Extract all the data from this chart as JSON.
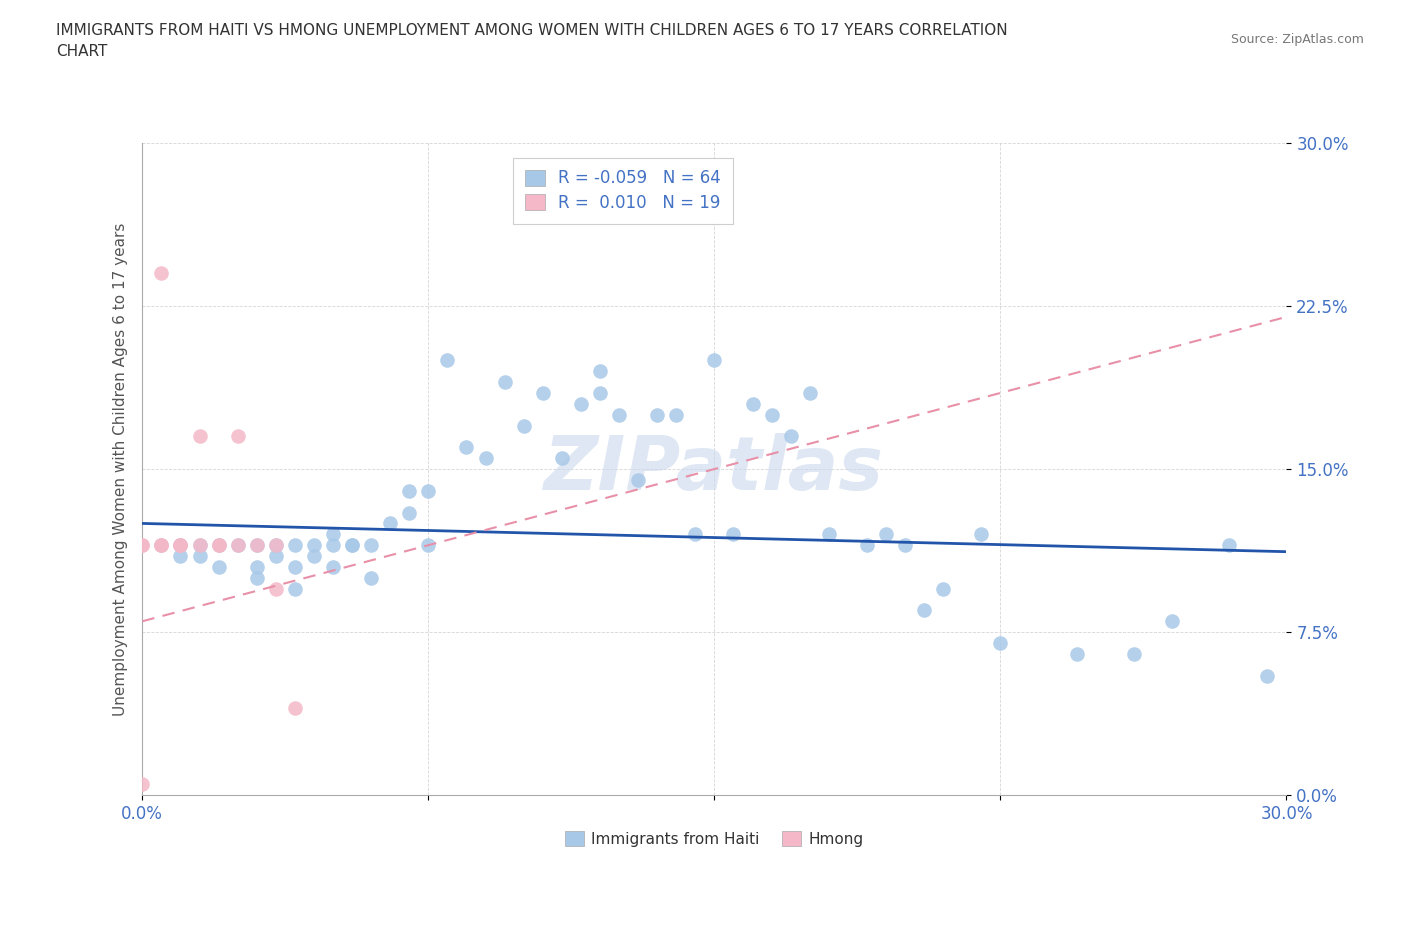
{
  "title": "IMMIGRANTS FROM HAITI VS HMONG UNEMPLOYMENT AMONG WOMEN WITH CHILDREN AGES 6 TO 17 YEARS CORRELATION\nCHART",
  "source": "Source: ZipAtlas.com",
  "xlabel_bottom": "Immigrants from Haiti",
  "xlabel_bottom2": "Hmong",
  "ylabel": "Unemployment Among Women with Children Ages 6 to 17 years",
  "xlim": [
    0.0,
    0.3
  ],
  "ylim": [
    0.0,
    0.3
  ],
  "haiti_color": "#a8c8e8",
  "hmong_color": "#f4b8c8",
  "haiti_line_color": "#2255aa",
  "hmong_line_color": "#e890a8",
  "watermark_color": "#c8d8ec",
  "r_haiti": -0.059,
  "n_haiti": 64,
  "r_hmong": 0.01,
  "n_hmong": 19,
  "haiti_x": [
    0.005,
    0.01,
    0.01,
    0.015,
    0.015,
    0.02,
    0.02,
    0.025,
    0.03,
    0.03,
    0.03,
    0.035,
    0.035,
    0.04,
    0.04,
    0.04,
    0.045,
    0.045,
    0.05,
    0.05,
    0.05,
    0.055,
    0.055,
    0.06,
    0.06,
    0.065,
    0.07,
    0.07,
    0.075,
    0.075,
    0.08,
    0.085,
    0.09,
    0.095,
    0.1,
    0.105,
    0.11,
    0.115,
    0.12,
    0.12,
    0.125,
    0.13,
    0.135,
    0.14,
    0.145,
    0.15,
    0.155,
    0.16,
    0.165,
    0.17,
    0.175,
    0.18,
    0.19,
    0.195,
    0.2,
    0.205,
    0.21,
    0.22,
    0.225,
    0.245,
    0.26,
    0.27,
    0.285,
    0.295
  ],
  "haiti_y": [
    0.115,
    0.115,
    0.11,
    0.115,
    0.11,
    0.105,
    0.115,
    0.115,
    0.1,
    0.105,
    0.115,
    0.11,
    0.115,
    0.095,
    0.105,
    0.115,
    0.11,
    0.115,
    0.105,
    0.115,
    0.12,
    0.115,
    0.115,
    0.1,
    0.115,
    0.125,
    0.14,
    0.13,
    0.115,
    0.14,
    0.2,
    0.16,
    0.155,
    0.19,
    0.17,
    0.185,
    0.155,
    0.18,
    0.185,
    0.195,
    0.175,
    0.145,
    0.175,
    0.175,
    0.12,
    0.2,
    0.12,
    0.18,
    0.175,
    0.165,
    0.185,
    0.12,
    0.115,
    0.12,
    0.115,
    0.085,
    0.095,
    0.12,
    0.07,
    0.065,
    0.065,
    0.08,
    0.115,
    0.055
  ],
  "hmong_x": [
    0.0,
    0.0,
    0.0,
    0.005,
    0.005,
    0.005,
    0.01,
    0.01,
    0.01,
    0.015,
    0.015,
    0.02,
    0.02,
    0.025,
    0.025,
    0.03,
    0.035,
    0.035,
    0.04
  ],
  "hmong_y": [
    0.115,
    0.115,
    0.005,
    0.115,
    0.115,
    0.24,
    0.115,
    0.115,
    0.115,
    0.115,
    0.165,
    0.115,
    0.115,
    0.115,
    0.165,
    0.115,
    0.095,
    0.115,
    0.04
  ],
  "haiti_regr": [
    0.125,
    0.112
  ],
  "hmong_regr": [
    0.08,
    0.22
  ]
}
